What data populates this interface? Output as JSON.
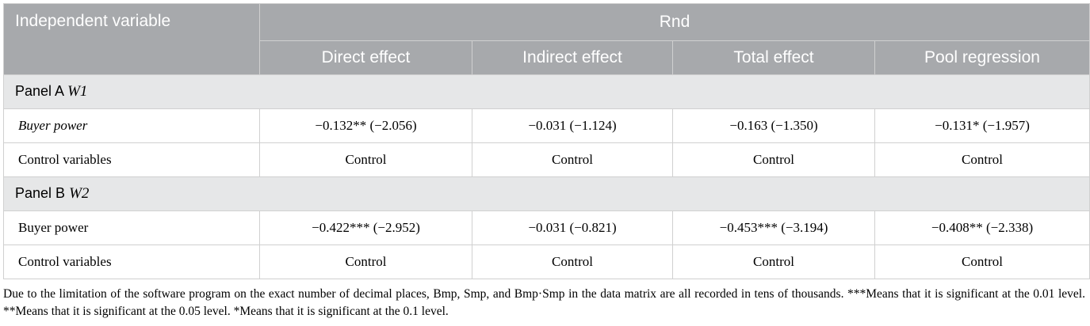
{
  "table": {
    "header": {
      "first": "Independent variable",
      "group": "Rnd",
      "columns": [
        "Direct effect",
        "Indirect effect",
        "Total effect",
        "Pool regression"
      ]
    },
    "rows": [
      {
        "panel": "Panel A",
        "w": "W1"
      },
      {
        "label": "Buyer power",
        "cells": [
          "−0.132** (−2.056)",
          "−0.031 (−1.124)",
          "−0.163 (−1.350)",
          "−0.131* (−1.957)"
        ]
      },
      {
        "label": "Control variables",
        "cells": [
          "Control",
          "Control",
          "Control",
          "Control"
        ]
      },
      {
        "panel": "Panel B",
        "w": "W2"
      },
      {
        "label": "Buyer power",
        "cells": [
          "−0.422*** (−2.952)",
          "−0.031 (−0.821)",
          "−0.453*** (−3.194)",
          "−0.408** (−2.338)"
        ]
      },
      {
        "label": "Control variables",
        "cells": [
          "Control",
          "Control",
          "Control",
          "Control"
        ]
      }
    ]
  },
  "footnote": "Due to the limitation of the software program on the exact number of decimal places, Bmp, Smp, and Bmp·Smp in the data matrix are all recorded in tens of thousands. ***Means that it is significant at the 0.01 level. **Means that it is significant at the 0.05 level. *Means that it is significant at the 0.1 level."
}
